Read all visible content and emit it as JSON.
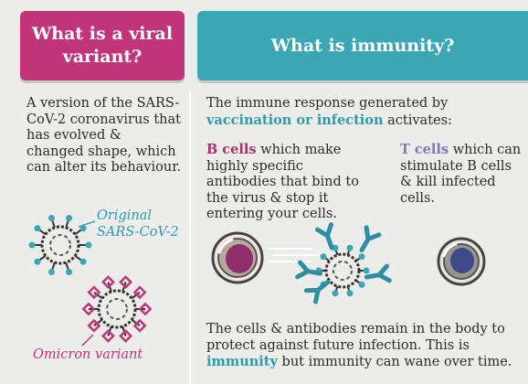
{
  "left": {
    "title": "What is a viral variant?",
    "description": "A version of the SARS-CoV-2 coronavirus that has evolved & changed shape, which can alter its behaviour.",
    "original_label_1": "Original",
    "original_label_2": "SARS-CoV-2",
    "omicron_label": "Omicron variant"
  },
  "right": {
    "title": "What is immunity?",
    "intro_1": "The immune response generated by",
    "intro_highlight": "vaccination or infection",
    "intro_2": "activates:",
    "bcells_label": "B cells",
    "bcells_text": "which make highly specific antibodies that bind to the virus & stop it entering your cells.",
    "tcells_label": "T cells",
    "tcells_text": "which can stimulate B cells & kill infected cells.",
    "outro_1": "The cells & antibodies remain in the body to protect against future infection. This is",
    "outro_highlight": "immunity",
    "outro_2": "but immunity can wane over time."
  },
  "colors": {
    "pink": "#c0357a",
    "teal": "#3ba7b4",
    "purple": "#7e7ab3",
    "background": "#ececea"
  }
}
